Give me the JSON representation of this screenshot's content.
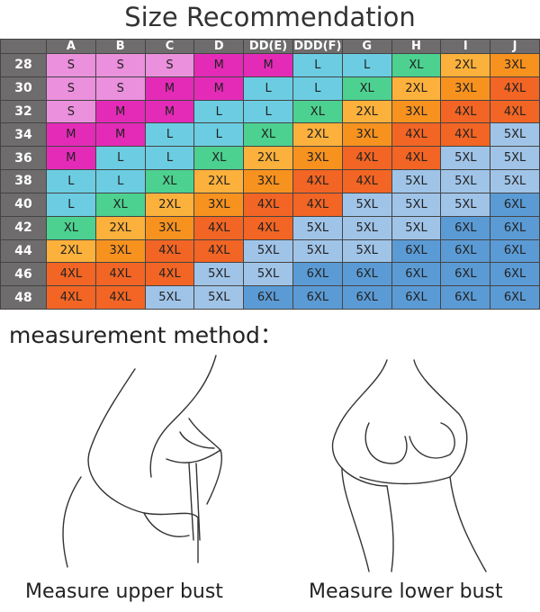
{
  "title": "Size Recommendation",
  "chart_data": {
    "type": "table",
    "columns": [
      "A",
      "B",
      "C",
      "D",
      "DD(E)",
      "DDD(F)",
      "G",
      "H",
      "I",
      "J"
    ],
    "rows": [
      {
        "band": "28",
        "sizes": [
          "S",
          "S",
          "S",
          "M",
          "M",
          "L",
          "L",
          "XL",
          "2XL",
          "3XL"
        ]
      },
      {
        "band": "30",
        "sizes": [
          "S",
          "S",
          "M",
          "M",
          "L",
          "L",
          "XL",
          "2XL",
          "3XL",
          "4XL"
        ]
      },
      {
        "band": "32",
        "sizes": [
          "S",
          "M",
          "M",
          "L",
          "L",
          "XL",
          "2XL",
          "3XL",
          "4XL",
          "4XL"
        ]
      },
      {
        "band": "34",
        "sizes": [
          "M",
          "M",
          "L",
          "L",
          "XL",
          "2XL",
          "3XL",
          "4XL",
          "4XL",
          "5XL"
        ]
      },
      {
        "band": "36",
        "sizes": [
          "M",
          "L",
          "L",
          "XL",
          "2XL",
          "3XL",
          "4XL",
          "4XL",
          "5XL",
          "5XL"
        ]
      },
      {
        "band": "38",
        "sizes": [
          "L",
          "L",
          "XL",
          "2XL",
          "3XL",
          "4XL",
          "4XL",
          "5XL",
          "5XL",
          "5XL"
        ]
      },
      {
        "band": "40",
        "sizes": [
          "L",
          "XL",
          "2XL",
          "3XL",
          "4XL",
          "4XL",
          "5XL",
          "5XL",
          "5XL",
          "6XL"
        ]
      },
      {
        "band": "42",
        "sizes": [
          "XL",
          "2XL",
          "3XL",
          "4XL",
          "4XL",
          "5XL",
          "5XL",
          "5XL",
          "6XL",
          "6XL"
        ]
      },
      {
        "band": "44",
        "sizes": [
          "2XL",
          "3XL",
          "4XL",
          "4XL",
          "5XL",
          "5XL",
          "5XL",
          "6XL",
          "6XL",
          "6XL"
        ]
      },
      {
        "band": "46",
        "sizes": [
          "4XL",
          "4XL",
          "4XL",
          "5XL",
          "5XL",
          "6XL",
          "6XL",
          "6XL",
          "6XL",
          "6XL"
        ]
      },
      {
        "band": "48",
        "sizes": [
          "4XL",
          "4XL",
          "5XL",
          "5XL",
          "6XL",
          "6XL",
          "6XL",
          "6XL",
          "6XL",
          "6XL"
        ]
      }
    ],
    "size_colors": {
      "S": "#ea90dc",
      "M": "#e42bb8",
      "L": "#6ccde2",
      "XL": "#4cd190",
      "2XL": "#fbb13c",
      "3XL": "#f7921f",
      "4XL": "#f26524",
      "5XL": "#a0c4e8",
      "6XL": "#5b9bd5"
    },
    "header_color": "#6e6c6c"
  },
  "method_heading": "measurement method：",
  "captions": {
    "upper": "Measure upper bust",
    "lower": "Measure lower bust"
  }
}
